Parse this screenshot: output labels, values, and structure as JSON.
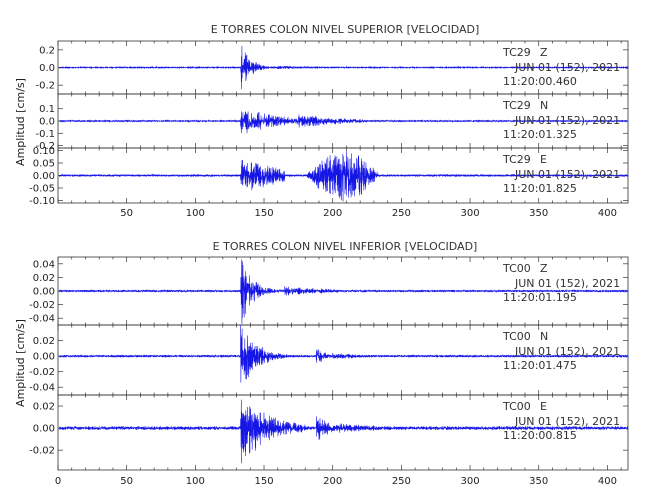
{
  "chart_data": [
    {
      "type": "line",
      "title": "E TORRES COLON NIVEL SUPERIOR [VELOCIDAD]",
      "ylabel": "Amplitud [cm/s]",
      "xlim": [
        0,
        415
      ],
      "xticks": [
        50,
        100,
        150,
        200,
        250,
        300,
        350,
        400
      ],
      "color": "#1515e6",
      "traces": [
        {
          "station": "TC29",
          "component": "Z",
          "date": "JUN 01 (152), 2021",
          "time": "11:20:00.460",
          "ylim": [
            -0.3,
            0.3
          ],
          "yticks": [
            {
              "v": 0.2,
              "label": "0.2"
            },
            {
              "v": 0.0,
              "label": "0.0"
            },
            {
              "v": -0.2,
              "label": "-0.2"
            }
          ],
          "noise": 0.006,
          "seed": 11,
          "packets": [
            {
              "t0": 133,
              "t1": 160,
              "amp": 0.25,
              "decay": 7,
              "freq": 1.1
            },
            {
              "t0": 160,
              "t1": 230,
              "amp": 0.02,
              "decay": 30,
              "freq": 1.0
            }
          ]
        },
        {
          "station": "TC29",
          "component": "N",
          "date": "JUN 01 (152), 2021",
          "time": "11:20:01.325",
          "ylim": [
            -0.22,
            0.22
          ],
          "yticks": [
            {
              "v": 0.1,
              "label": "0.1"
            },
            {
              "v": 0.0,
              "label": "0.0"
            },
            {
              "v": -0.1,
              "label": "-0.1"
            },
            {
              "v": -0.2,
              "label": "-0.2"
            }
          ],
          "noise": 0.006,
          "seed": 23,
          "packets": [
            {
              "t0": 133,
              "t1": 175,
              "amp": 0.11,
              "decay": 25,
              "freq": 1.2
            },
            {
              "t0": 175,
              "t1": 225,
              "amp": 0.05,
              "decay": 35,
              "freq": 1.0
            }
          ]
        },
        {
          "station": "TC29",
          "component": "E",
          "date": "JUN 01 (152), 2021",
          "time": "11:20:01.825",
          "ylim": [
            -0.11,
            0.11
          ],
          "yticks": [
            {
              "v": 0.1,
              "label": "0.10"
            },
            {
              "v": 0.05,
              "label": "0.05"
            },
            {
              "v": 0.0,
              "label": "0.00"
            },
            {
              "v": -0.05,
              "label": "-0.05"
            },
            {
              "v": -0.1,
              "label": "-0.10"
            }
          ],
          "noise": 0.004,
          "seed": 37,
          "packets": [
            {
              "t0": 133,
              "t1": 165,
              "amp": 0.07,
              "decay": 30,
              "freq": 1.2
            },
            {
              "t0": 180,
              "t1": 235,
              "amp": 0.09,
              "decay": 0,
              "freq": 0.9,
              "spindle": true
            }
          ]
        }
      ]
    },
    {
      "type": "line",
      "title": "E TORRES COLON NIVEL INFERIOR [VELOCIDAD]",
      "ylabel": "Amplitud [cm/s]",
      "xlim": [
        0,
        415
      ],
      "xticks": [
        0,
        50,
        100,
        150,
        200,
        250,
        300,
        350,
        400
      ],
      "color": "#1515e6",
      "traces": [
        {
          "station": "TC00",
          "component": "Z",
          "date": "JUN 01 (152), 2021",
          "time": "11:20:01.195",
          "ylim": [
            -0.05,
            0.05
          ],
          "yticks": [
            {
              "v": 0.04,
              "label": "0.04"
            },
            {
              "v": 0.02,
              "label": "0.02"
            },
            {
              "v": 0.0,
              "label": "0.00"
            },
            {
              "v": -0.02,
              "label": "-0.02"
            },
            {
              "v": -0.04,
              "label": "-0.04"
            }
          ],
          "noise": 0.0015,
          "seed": 41,
          "packets": [
            {
              "t0": 133,
              "t1": 165,
              "amp": 0.045,
              "decay": 9,
              "freq": 1.1
            },
            {
              "t0": 165,
              "t1": 240,
              "amp": 0.006,
              "decay": 40,
              "freq": 1.0
            }
          ]
        },
        {
          "station": "TC00",
          "component": "N",
          "date": "JUN 01 (152), 2021",
          "time": "11:20:01.475",
          "ylim": [
            -0.05,
            0.04
          ],
          "yticks": [
            {
              "v": 0.02,
              "label": "0.02"
            },
            {
              "v": 0.0,
              "label": "0.00"
            },
            {
              "v": -0.02,
              "label": "-0.02"
            },
            {
              "v": -0.04,
              "label": "-0.04"
            }
          ],
          "noise": 0.0015,
          "seed": 53,
          "packets": [
            {
              "t0": 133,
              "t1": 175,
              "amp": 0.04,
              "decay": 12,
              "freq": 1.2
            },
            {
              "t0": 188,
              "t1": 200,
              "amp": 0.012,
              "decay": 6,
              "freq": 1.0
            },
            {
              "t0": 200,
              "t1": 250,
              "amp": 0.004,
              "decay": 30,
              "freq": 1.0
            }
          ]
        },
        {
          "station": "TC00",
          "component": "E",
          "date": "JUN 01 (152), 2021",
          "time": "11:20:00.815",
          "ylim": [
            -0.038,
            0.03
          ],
          "yticks": [
            {
              "v": 0.02,
              "label": "0.02"
            },
            {
              "v": 0.0,
              "label": "0.00"
            },
            {
              "v": -0.02,
              "label": "-0.02"
            }
          ],
          "noise": 0.0015,
          "seed": 67,
          "packets": [
            {
              "t0": 133,
              "t1": 180,
              "amp": 0.03,
              "decay": 20,
              "freq": 1.2
            },
            {
              "t0": 188,
              "t1": 205,
              "amp": 0.012,
              "decay": 10,
              "freq": 1.0
            },
            {
              "t0": 205,
              "t1": 260,
              "amp": 0.004,
              "decay": 35,
              "freq": 1.0
            }
          ]
        }
      ]
    }
  ]
}
